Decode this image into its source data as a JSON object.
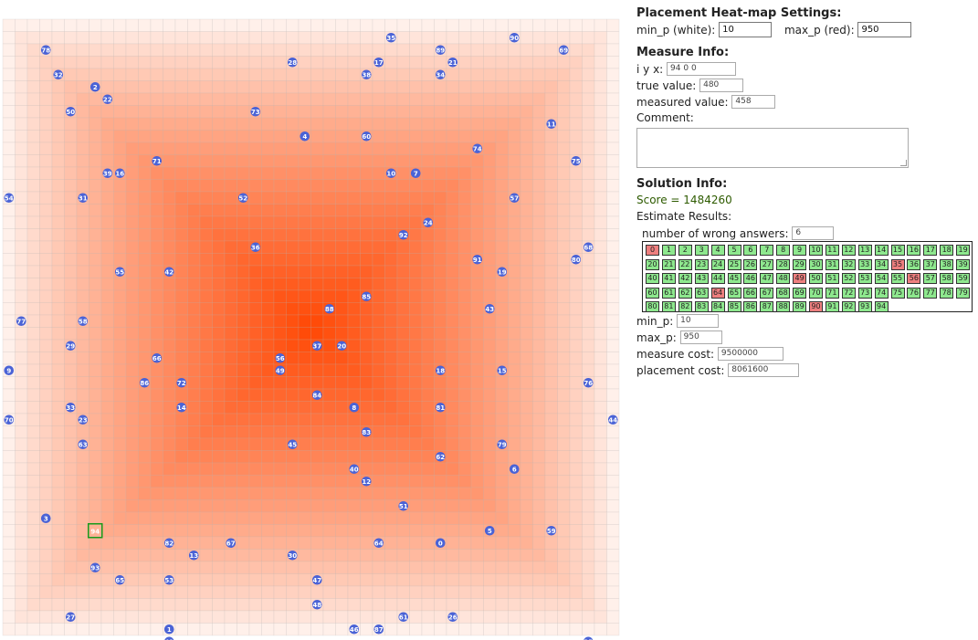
{
  "heatmap": {
    "min_color": "#ffffff",
    "max_color": "#ff4500",
    "points": [
      {
        "id": 0,
        "r": 42,
        "c": 35
      },
      {
        "id": 1,
        "r": 49,
        "c": 13
      },
      {
        "id": 2,
        "r": 5,
        "c": 7
      },
      {
        "id": 3,
        "r": 40,
        "c": 3
      },
      {
        "id": 4,
        "r": 9,
        "c": 24
      },
      {
        "id": 5,
        "r": 41,
        "c": 39
      },
      {
        "id": 6,
        "r": 36,
        "c": 41
      },
      {
        "id": 7,
        "r": 12,
        "c": 33
      },
      {
        "id": 8,
        "r": 31,
        "c": 28
      },
      {
        "id": 9,
        "r": 28,
        "c": 0
      },
      {
        "id": 10,
        "r": 12,
        "c": 31
      },
      {
        "id": 11,
        "r": 8,
        "c": 44
      },
      {
        "id": 12,
        "r": 37,
        "c": 29
      },
      {
        "id": 13,
        "r": 43,
        "c": 15
      },
      {
        "id": 14,
        "r": 31,
        "c": 14
      },
      {
        "id": 15,
        "r": 28,
        "c": 40
      },
      {
        "id": 16,
        "r": 12,
        "c": 9
      },
      {
        "id": 17,
        "r": 3,
        "c": 30
      },
      {
        "id": 18,
        "r": 28,
        "c": 35
      },
      {
        "id": 19,
        "r": 20,
        "c": 40
      },
      {
        "id": 20,
        "r": 26,
        "c": 27
      },
      {
        "id": 21,
        "r": 3,
        "c": 36
      },
      {
        "id": 22,
        "r": 6,
        "c": 8
      },
      {
        "id": 23,
        "r": 32,
        "c": 6
      },
      {
        "id": 24,
        "r": 16,
        "c": 34
      },
      {
        "id": 25,
        "r": 50,
        "c": 47
      },
      {
        "id": 26,
        "r": 48,
        "c": 36
      },
      {
        "id": 27,
        "r": 48,
        "c": 5
      },
      {
        "id": 28,
        "r": 3,
        "c": 23
      },
      {
        "id": 29,
        "r": 26,
        "c": 5
      },
      {
        "id": 30,
        "r": 43,
        "c": 23
      },
      {
        "id": 31,
        "r": 14,
        "c": 6
      },
      {
        "id": 32,
        "r": 4,
        "c": 4
      },
      {
        "id": 33,
        "r": 31,
        "c": 5
      },
      {
        "id": 34,
        "r": 4,
        "c": 35
      },
      {
        "id": 35,
        "r": 1,
        "c": 31
      },
      {
        "id": 36,
        "r": 18,
        "c": 20
      },
      {
        "id": 37,
        "r": 26,
        "c": 25
      },
      {
        "id": 38,
        "r": 4,
        "c": 29
      },
      {
        "id": 39,
        "r": 12,
        "c": 8
      },
      {
        "id": 40,
        "r": 36,
        "c": 28
      },
      {
        "id": 41,
        "r": 50,
        "c": 13
      },
      {
        "id": 42,
        "r": 20,
        "c": 13
      },
      {
        "id": 43,
        "r": 23,
        "c": 39
      },
      {
        "id": 44,
        "r": 32,
        "c": 49
      },
      {
        "id": 45,
        "r": 34,
        "c": 23
      },
      {
        "id": 46,
        "r": 49,
        "c": 28
      },
      {
        "id": 47,
        "r": 45,
        "c": 25
      },
      {
        "id": 48,
        "r": 47,
        "c": 25
      },
      {
        "id": 49,
        "r": 28,
        "c": 22
      },
      {
        "id": 50,
        "r": 7,
        "c": 5
      },
      {
        "id": 51,
        "r": 39,
        "c": 32
      },
      {
        "id": 52,
        "r": 14,
        "c": 19
      },
      {
        "id": 53,
        "r": 45,
        "c": 13
      },
      {
        "id": 54,
        "r": 14,
        "c": 0
      },
      {
        "id": 55,
        "r": 20,
        "c": 9
      },
      {
        "id": 56,
        "r": 27,
        "c": 22
      },
      {
        "id": 57,
        "r": 14,
        "c": 41
      },
      {
        "id": 58,
        "r": 24,
        "c": 6
      },
      {
        "id": 59,
        "r": 41,
        "c": 44
      },
      {
        "id": 60,
        "r": 9,
        "c": 29
      },
      {
        "id": 61,
        "r": 48,
        "c": 32
      },
      {
        "id": 62,
        "r": 35,
        "c": 35
      },
      {
        "id": 63,
        "r": 34,
        "c": 6
      },
      {
        "id": 64,
        "r": 42,
        "c": 30
      },
      {
        "id": 65,
        "r": 45,
        "c": 9
      },
      {
        "id": 66,
        "r": 27,
        "c": 12
      },
      {
        "id": 67,
        "r": 42,
        "c": 18
      },
      {
        "id": 68,
        "r": 18,
        "c": 47
      },
      {
        "id": 69,
        "r": 2,
        "c": 45
      },
      {
        "id": 70,
        "r": 32,
        "c": 0
      },
      {
        "id": 71,
        "r": 11,
        "c": 12
      },
      {
        "id": 72,
        "r": 29,
        "c": 14
      },
      {
        "id": 73,
        "r": 7,
        "c": 20
      },
      {
        "id": 74,
        "r": 10,
        "c": 38
      },
      {
        "id": 75,
        "r": 11,
        "c": 46
      },
      {
        "id": 76,
        "r": 29,
        "c": 47
      },
      {
        "id": 77,
        "r": 24,
        "c": 1
      },
      {
        "id": 78,
        "r": 2,
        "c": 3
      },
      {
        "id": 79,
        "r": 34,
        "c": 40
      },
      {
        "id": 80,
        "r": 19,
        "c": 46
      },
      {
        "id": 81,
        "r": 31,
        "c": 35
      },
      {
        "id": 82,
        "r": 42,
        "c": 13
      },
      {
        "id": 83,
        "r": 33,
        "c": 29
      },
      {
        "id": 84,
        "r": 30,
        "c": 25
      },
      {
        "id": 85,
        "r": 22,
        "c": 29
      },
      {
        "id": 86,
        "r": 29,
        "c": 11
      },
      {
        "id": 87,
        "r": 49,
        "c": 30
      },
      {
        "id": 88,
        "r": 23,
        "c": 26
      },
      {
        "id": 89,
        "r": 2,
        "c": 35
      },
      {
        "id": 90,
        "r": 1,
        "c": 41
      },
      {
        "id": 91,
        "r": 19,
        "c": 38
      },
      {
        "id": 92,
        "r": 17,
        "c": 32
      },
      {
        "id": 93,
        "r": 44,
        "c": 7
      },
      {
        "id": 94,
        "r": 41,
        "c": 7
      }
    ],
    "selected": 94
  },
  "settings": {
    "title": "Placement Heat-map Settings:",
    "min_p_label": "min_p (white):",
    "min_p_value": "10",
    "max_p_label": "max_p (red):",
    "max_p_value": "950"
  },
  "measure": {
    "title": "Measure Info:",
    "iyx_label": "i y x:",
    "iyx_value": "94 0 0",
    "true_label": "true value:",
    "true_value": "480",
    "measured_label": "measured value:",
    "measured_value": "458",
    "comment_label": "Comment:"
  },
  "solution": {
    "title": "Solution Info:",
    "score": "Score = 1484260",
    "estimate_label": "Estimate Results:",
    "wrong_label": "number of wrong answers:",
    "wrong_value": "6",
    "wrong_ids": [
      0,
      35,
      49,
      56,
      64,
      90
    ],
    "total": 95,
    "min_p_label": "min_p:",
    "min_p_value": "10",
    "max_p_label": "max_p:",
    "max_p_value": "950",
    "measure_cost_label": "measure cost:",
    "measure_cost_value": "9500000",
    "placement_cost_label": "placement cost:",
    "placement_cost_value": "8061600"
  }
}
